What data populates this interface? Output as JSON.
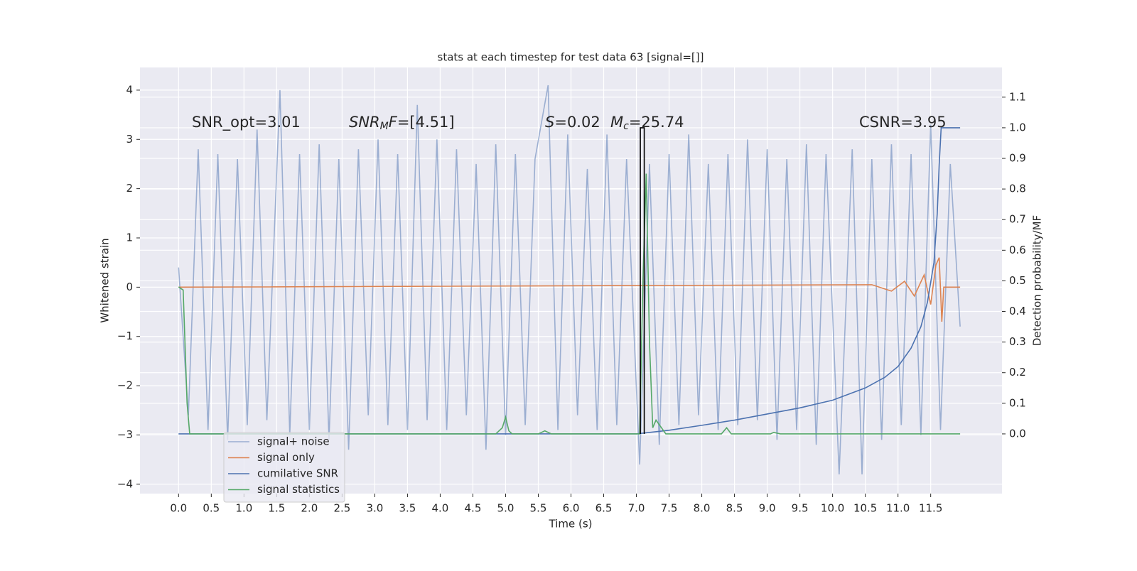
{
  "chart_data": {
    "type": "line",
    "title": "stats at each timestep for test data 63 [signal=[]]",
    "xlabel": "Time (s)",
    "ylabel": "Whitened strain",
    "y2label": "Detection probability/MF",
    "xlim": [
      -0.59,
      12.59
    ],
    "ylim": [
      -4.19,
      4.46
    ],
    "y2lim": [
      -0.195,
      1.197
    ],
    "xticks": [
      {
        "value": 0,
        "label": "0.0"
      },
      0.5,
      {
        "value": 1,
        "label": "1.0"
      },
      1.5,
      {
        "value": 2,
        "label": "2.0"
      },
      2.5,
      {
        "value": 3,
        "label": "3.0"
      },
      3.5,
      {
        "value": 4,
        "label": "4.0"
      },
      4.5,
      {
        "value": 5,
        "label": "5.0"
      },
      5.5,
      {
        "value": 6,
        "label": "6.0"
      },
      6.5,
      {
        "value": 7,
        "label": "7.0"
      },
      7.5,
      {
        "value": 8,
        "label": "8.0"
      },
      8.5,
      {
        "value": 9,
        "label": "9.0"
      },
      9.5,
      {
        "value": 10,
        "label": "10.0"
      },
      10.5,
      {
        "value": 11,
        "label": "11.0"
      },
      11.5
    ],
    "yticks": [
      {
        "value": -4,
        "label": "−4"
      },
      {
        "value": -3,
        "label": "−3"
      },
      {
        "value": -2,
        "label": "−2"
      },
      {
        "value": -1,
        "label": "−1"
      },
      0,
      1,
      2,
      3,
      4
    ],
    "y2ticks": [
      {
        "value": 0,
        "label": "0.0"
      },
      0.1,
      0.2,
      0.3,
      0.4,
      0.5,
      0.6,
      0.7,
      0.8,
      0.9,
      {
        "value": 1,
        "label": "1.0"
      },
      1.1
    ],
    "grid": true,
    "legend": "lower left",
    "annotations": [
      [
        {
          "text": "SNR_opt=3.01"
        }
      ],
      [
        {
          "text": "SNR",
          "italic": true
        },
        {
          "text": "M",
          "italic": true,
          "sub": true
        },
        {
          "text": "F",
          "italic": true
        },
        {
          "text": "=[4.51]"
        }
      ],
      [
        {
          "text": "S",
          "italic": true
        },
        {
          "text": "=0.02"
        }
      ],
      [
        {
          "text": "M",
          "italic": true
        },
        {
          "text": "c",
          "italic": true,
          "sub": true
        },
        {
          "text": "=25.74"
        }
      ],
      [
        {
          "text": "CSNR=3.95"
        }
      ]
    ],
    "series": [
      {
        "name": "signal+ noise",
        "color": "#4c72b0",
        "opacity": 0.5,
        "x": [
          0.0,
          0.15,
          0.3,
          0.45,
          0.6,
          0.75,
          0.9,
          1.05,
          1.2,
          1.35,
          1.55,
          1.7,
          1.85,
          2.0,
          2.15,
          2.3,
          2.45,
          2.6,
          2.75,
          2.9,
          3.05,
          3.2,
          3.35,
          3.5,
          3.65,
          3.8,
          3.95,
          4.1,
          4.25,
          4.4,
          4.55,
          4.7,
          4.85,
          5.0,
          5.15,
          5.3,
          5.45,
          5.65,
          5.8,
          5.95,
          6.1,
          6.25,
          6.4,
          6.55,
          6.7,
          6.85,
          7.05,
          7.2,
          7.35,
          7.5,
          7.65,
          7.8,
          7.95,
          8.1,
          8.25,
          8.4,
          8.55,
          8.7,
          8.85,
          9.0,
          9.15,
          9.3,
          9.45,
          9.6,
          9.75,
          9.9,
          10.1,
          10.3,
          10.45,
          10.6,
          10.75,
          10.9,
          11.05,
          11.2,
          11.35,
          11.5,
          11.65,
          11.8,
          11.95
        ],
        "values": [
          0.4,
          -2.6,
          2.8,
          -2.9,
          2.7,
          -3.1,
          2.6,
          -2.8,
          3.2,
          -2.7,
          4.0,
          -3.0,
          2.7,
          -2.9,
          2.9,
          -3.1,
          2.6,
          -3.3,
          2.8,
          -2.6,
          3.0,
          -2.8,
          2.7,
          -2.9,
          3.7,
          -2.7,
          3.0,
          -2.9,
          2.8,
          -2.6,
          2.5,
          -3.3,
          2.9,
          -3.0,
          2.7,
          -2.8,
          2.6,
          4.1,
          -2.9,
          3.1,
          -2.6,
          2.4,
          -2.9,
          3.1,
          -2.8,
          2.6,
          -3.6,
          2.5,
          -3.2,
          2.7,
          -2.8,
          3.1,
          -2.6,
          2.5,
          -2.9,
          2.7,
          -2.8,
          3.0,
          -2.7,
          2.8,
          -3.1,
          2.6,
          -2.9,
          2.9,
          -3.2,
          2.7,
          -3.8,
          2.8,
          -3.8,
          2.6,
          -3.1,
          2.9,
          -2.8,
          2.7,
          -3.0,
          3.3,
          -2.9,
          2.5,
          -0.8
        ]
      },
      {
        "name": "signal only",
        "color": "#dd8452",
        "x": [
          0,
          10.6,
          10.9,
          11.1,
          11.25,
          11.4,
          11.5,
          11.58,
          11.63,
          11.67,
          11.7,
          11.95
        ],
        "values": [
          0,
          0.05,
          -0.08,
          0.12,
          -0.18,
          0.25,
          -0.35,
          0.45,
          0.6,
          -0.7,
          0,
          0
        ]
      },
      {
        "name": "cumilative SNR",
        "color": "#4c72b0",
        "axis": "y2",
        "x": [
          0,
          7.0,
          7.5,
          8.0,
          8.5,
          9.0,
          9.5,
          10.0,
          10.5,
          10.8,
          11.0,
          11.2,
          11.35,
          11.45,
          11.55,
          11.6,
          11.63,
          11.66,
          11.95
        ],
        "values": [
          0,
          0,
          0.012,
          0.028,
          0.045,
          0.065,
          0.085,
          0.11,
          0.15,
          0.185,
          0.22,
          0.28,
          0.35,
          0.43,
          0.56,
          0.72,
          0.88,
          1.0,
          1.0
        ]
      },
      {
        "name": "signal statistics",
        "color": "#55a868",
        "axis": "y2",
        "x": [
          0,
          0.07,
          0.13,
          0.17,
          4.85,
          4.95,
          5.0,
          5.05,
          5.1,
          5.5,
          5.6,
          5.7,
          7.05,
          7.1,
          7.15,
          7.2,
          7.25,
          7.3,
          7.35,
          7.45,
          8.3,
          8.38,
          8.45,
          9.05,
          9.1,
          9.2,
          11.95
        ],
        "values": [
          0.48,
          0.47,
          0.1,
          0,
          0,
          0.02,
          0.055,
          0.01,
          0,
          0,
          0.01,
          0,
          0,
          0.5,
          0.85,
          0.3,
          0.02,
          0.045,
          0.03,
          0,
          0,
          0.02,
          0,
          0,
          0.005,
          0,
          0
        ]
      },
      {
        "color": "#000000",
        "axis": "y2",
        "x": [
          7.06,
          7.06,
          7.12,
          7.12
        ],
        "values": [
          0,
          1,
          1,
          0
        ]
      }
    ]
  }
}
